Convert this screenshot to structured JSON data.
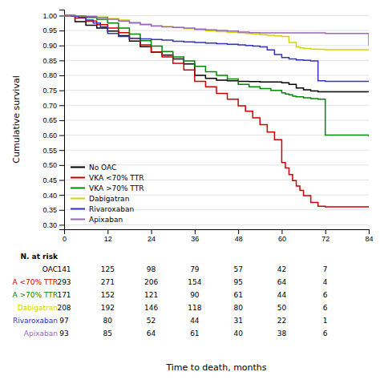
{
  "chart_data": {
    "type": "step",
    "xlabel": "Time to death, months",
    "ylabel": "Cumulative survival",
    "xlim": [
      0,
      84
    ],
    "ylim": [
      0.285,
      1.02
    ],
    "xticks": [
      0,
      12,
      24,
      36,
      48,
      60,
      72,
      84
    ],
    "yticks": [
      {
        "value": 0.3,
        "label": "0.30"
      },
      {
        "value": 0.35,
        "label": "0.35"
      },
      {
        "value": 0.4,
        "label": "0.40"
      },
      {
        "value": 0.45,
        "label": "0.45"
      },
      {
        "value": 0.5,
        "label": "0.50"
      },
      {
        "value": 0.55,
        "label": "0.55"
      },
      {
        "value": 0.6,
        "label": "0.60"
      },
      {
        "value": 0.65,
        "label": "0.65"
      },
      {
        "value": 0.7,
        "label": "0.70"
      },
      {
        "value": 0.75,
        "label": "0.75"
      },
      {
        "value": 0.8,
        "label": "0.80"
      },
      {
        "value": 0.85,
        "label": "0.85"
      },
      {
        "value": 0.9,
        "label": "0.90"
      },
      {
        "value": 0.95,
        "label": "0.95"
      },
      {
        "value": 1.0,
        "label": "1.00"
      }
    ],
    "grid": true,
    "legend": "lower left",
    "series": [
      {
        "name": "No OAC",
        "color": "#000000",
        "x": [
          0,
          3,
          6,
          9,
          12,
          15,
          18,
          21,
          24,
          27,
          30,
          33,
          36,
          39,
          42,
          45,
          48,
          51,
          54,
          57,
          60,
          62,
          64,
          66,
          68,
          70,
          72,
          84
        ],
        "values": [
          1.0,
          0.98,
          0.968,
          0.958,
          0.948,
          0.933,
          0.915,
          0.896,
          0.878,
          0.868,
          0.855,
          0.838,
          0.8,
          0.79,
          0.784,
          0.782,
          0.78,
          0.779,
          0.778,
          0.778,
          0.775,
          0.77,
          0.758,
          0.752,
          0.748,
          0.745,
          0.745,
          0.745
        ]
      },
      {
        "name": "VKA <70% TTR",
        "color": "#cc0000",
        "x": [
          0,
          3,
          6,
          9,
          12,
          15,
          18,
          21,
          24,
          27,
          30,
          33,
          36,
          39,
          42,
          45,
          48,
          50,
          52,
          54,
          56,
          58,
          60,
          61,
          62,
          63,
          64,
          65,
          66,
          68,
          70,
          72,
          84
        ],
        "values": [
          1.0,
          0.992,
          0.982,
          0.97,
          0.958,
          0.943,
          0.924,
          0.902,
          0.878,
          0.862,
          0.84,
          0.818,
          0.78,
          0.762,
          0.74,
          0.72,
          0.698,
          0.68,
          0.658,
          0.635,
          0.61,
          0.585,
          0.508,
          0.49,
          0.468,
          0.448,
          0.43,
          0.415,
          0.398,
          0.375,
          0.362,
          0.36,
          0.36
        ]
      },
      {
        "name": "VKA >70% TTR",
        "color": "#008800",
        "x": [
          0,
          3,
          6,
          9,
          12,
          15,
          18,
          21,
          24,
          27,
          30,
          33,
          36,
          39,
          42,
          45,
          48,
          51,
          54,
          57,
          60,
          61,
          62,
          63,
          64,
          66,
          68,
          70,
          72,
          84
        ],
        "values": [
          1.0,
          0.997,
          0.994,
          0.988,
          0.975,
          0.958,
          0.938,
          0.916,
          0.898,
          0.88,
          0.862,
          0.848,
          0.83,
          0.812,
          0.8,
          0.788,
          0.77,
          0.762,
          0.756,
          0.75,
          0.742,
          0.738,
          0.735,
          0.73,
          0.728,
          0.725,
          0.722,
          0.72,
          0.6,
          0.595
        ]
      },
      {
        "name": "Dabigatran",
        "color": "#d4d400",
        "x": [
          0,
          3,
          6,
          9,
          12,
          15,
          18,
          21,
          24,
          27,
          30,
          33,
          36,
          39,
          42,
          45,
          48,
          50,
          52,
          54,
          56,
          58,
          60,
          62,
          64,
          65,
          66,
          68,
          70,
          72,
          84
        ],
        "values": [
          1.0,
          0.999,
          0.998,
          0.995,
          0.99,
          0.985,
          0.978,
          0.972,
          0.966,
          0.963,
          0.96,
          0.956,
          0.952,
          0.949,
          0.946,
          0.944,
          0.942,
          0.94,
          0.938,
          0.936,
          0.934,
          0.932,
          0.93,
          0.91,
          0.895,
          0.892,
          0.89,
          0.888,
          0.887,
          0.886,
          0.886
        ]
      },
      {
        "name": "Rivaroxaban",
        "color": "#3333bb",
        "x": [
          0,
          2,
          4,
          6,
          8,
          10,
          12,
          15,
          18,
          21,
          24,
          27,
          30,
          33,
          36,
          39,
          42,
          45,
          48,
          50,
          52,
          54,
          56,
          58,
          60,
          62,
          64,
          66,
          68,
          70,
          72,
          84
        ],
        "values": [
          1.0,
          0.998,
          0.994,
          0.985,
          0.975,
          0.962,
          0.94,
          0.93,
          0.924,
          0.922,
          0.92,
          0.918,
          0.914,
          0.912,
          0.91,
          0.908,
          0.906,
          0.904,
          0.902,
          0.9,
          0.898,
          0.895,
          0.885,
          0.87,
          0.86,
          0.855,
          0.852,
          0.85,
          0.848,
          0.782,
          0.78,
          0.78
        ]
      },
      {
        "name": "Apixaban",
        "color": "#9966bb",
        "x": [
          0,
          3,
          6,
          9,
          12,
          15,
          18,
          21,
          24,
          27,
          30,
          33,
          36,
          39,
          42,
          45,
          48,
          51,
          54,
          57,
          60,
          63,
          66,
          69,
          72,
          84
        ],
        "values": [
          1.0,
          0.999,
          0.997,
          0.994,
          0.988,
          0.982,
          0.975,
          0.97,
          0.965,
          0.962,
          0.96,
          0.958,
          0.955,
          0.952,
          0.95,
          0.948,
          0.945,
          0.943,
          0.942,
          0.942,
          0.942,
          0.942,
          0.942,
          0.942,
          0.94,
          0.9
        ]
      }
    ],
    "at_risk": {
      "title": "N. at risk",
      "times": [
        0,
        12,
        24,
        36,
        48,
        60,
        72
      ],
      "rows": [
        {
          "name": "OAC",
          "color": "#000000",
          "values": [
            141,
            125,
            98,
            79,
            57,
            42,
            7
          ]
        },
        {
          "name": "A <70% TTR",
          "color": "#cc0000",
          "values": [
            293,
            271,
            206,
            154,
            95,
            64,
            4
          ]
        },
        {
          "name": "A >70% TTR",
          "color": "#008800",
          "values": [
            171,
            152,
            121,
            90,
            61,
            44,
            6
          ]
        },
        {
          "name": "Dabigatran",
          "color": "#d4d400",
          "values": [
            208,
            192,
            146,
            118,
            80,
            50,
            6
          ]
        },
        {
          "name": "Rivaroxaban",
          "color": "#3333bb",
          "values": [
            97,
            80,
            52,
            44,
            31,
            22,
            1
          ]
        },
        {
          "name": "Apixaban",
          "color": "#9966bb",
          "values": [
            93,
            85,
            64,
            61,
            40,
            38,
            6
          ]
        }
      ]
    }
  }
}
